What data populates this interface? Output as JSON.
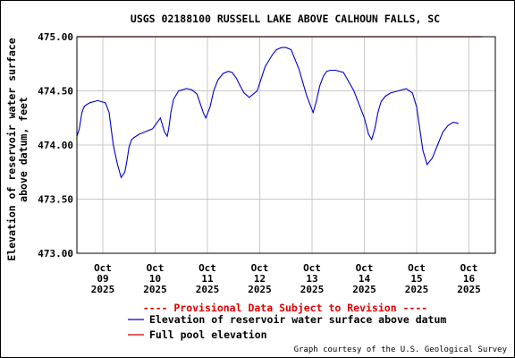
{
  "chart_data": {
    "type": "line",
    "title": "USGS 02188100 RUSSELL LAKE ABOVE CALHOUN FALLS, SC",
    "ylabel_line1": "Elevation of reservoir water surface",
    "ylabel_line2": "above datum, feet",
    "ylim": [
      473.0,
      475.0
    ],
    "yticks": [
      "475.00",
      "474.50",
      "474.00",
      "473.50",
      "473.00"
    ],
    "xlim": [
      0,
      7.5
    ],
    "xticks": [
      {
        "x": 0.5,
        "l1": "Oct",
        "l2": "09",
        "l3": "2025"
      },
      {
        "x": 1.5,
        "l1": "Oct",
        "l2": "10",
        "l3": "2025"
      },
      {
        "x": 2.5,
        "l1": "Oct",
        "l2": "11",
        "l3": "2025"
      },
      {
        "x": 3.5,
        "l1": "Oct",
        "l2": "12",
        "l3": "2025"
      },
      {
        "x": 4.5,
        "l1": "Oct",
        "l2": "13",
        "l3": "2025"
      },
      {
        "x": 5.5,
        "l1": "Oct",
        "l2": "14",
        "l3": "2025"
      },
      {
        "x": 6.5,
        "l1": "Oct",
        "l2": "15",
        "l3": "2025"
      },
      {
        "x": 7.5,
        "l1": "Oct",
        "l2": "16",
        "l3": "2025"
      }
    ],
    "grid": true,
    "series": [
      {
        "name": "Elevation of reservoir water surface above datum",
        "color": "#0000cc",
        "x": [
          0.0,
          0.05,
          0.1,
          0.15,
          0.25,
          0.4,
          0.55,
          0.62,
          0.7,
          0.78,
          0.85,
          0.92,
          0.96,
          1.0,
          1.05,
          1.1,
          1.2,
          1.3,
          1.45,
          1.6,
          1.68,
          1.73,
          1.76,
          1.8,
          1.85,
          1.95,
          2.1,
          2.2,
          2.3,
          2.35,
          2.42,
          2.47,
          2.55,
          2.62,
          2.7,
          2.8,
          2.9,
          2.97,
          3.05,
          3.12,
          3.2,
          3.3,
          3.45,
          3.6,
          3.75,
          3.82,
          3.87,
          3.92,
          4.0,
          4.1,
          4.25,
          4.4,
          4.52,
          4.58,
          4.65,
          4.72,
          4.78,
          4.85,
          4.95,
          5.1,
          5.3,
          5.5,
          5.58,
          5.64,
          5.7,
          5.76,
          5.82,
          5.9,
          6.0,
          6.15,
          6.3,
          6.42,
          6.5,
          6.56,
          6.62,
          6.7,
          6.8,
          6.9,
          7.0,
          7.1,
          7.2,
          7.3
        ],
        "y": [
          474.08,
          474.15,
          474.3,
          474.36,
          474.39,
          474.41,
          474.39,
          474.3,
          474.0,
          473.82,
          473.7,
          473.75,
          473.85,
          473.98,
          474.05,
          474.07,
          474.1,
          474.12,
          474.15,
          474.25,
          474.12,
          474.08,
          474.15,
          474.3,
          474.42,
          474.5,
          474.52,
          474.51,
          474.47,
          474.4,
          474.3,
          474.25,
          474.35,
          474.5,
          474.6,
          474.66,
          474.68,
          474.67,
          474.62,
          474.55,
          474.48,
          474.44,
          474.5,
          474.72,
          474.84,
          474.88,
          474.89,
          474.9,
          474.9,
          474.88,
          474.7,
          474.45,
          474.3,
          474.4,
          474.55,
          474.64,
          474.68,
          474.69,
          474.69,
          474.67,
          474.5,
          474.25,
          474.1,
          474.05,
          474.15,
          474.3,
          474.4,
          474.45,
          474.48,
          474.5,
          474.52,
          474.48,
          474.35,
          474.15,
          473.95,
          473.82,
          473.88,
          474.0,
          474.12,
          474.18,
          474.21,
          474.2
        ]
      },
      {
        "name": "Full pool elevation",
        "color": "#cc0000",
        "x": [
          -0.2,
          7.75
        ],
        "y": [
          475.0,
          475.0
        ]
      }
    ],
    "annotation": "---- Provisional Data Subject to Revision ----",
    "legend_placement": "bottom",
    "credit": "Graph courtesy of the U.S. Geological Survey"
  }
}
